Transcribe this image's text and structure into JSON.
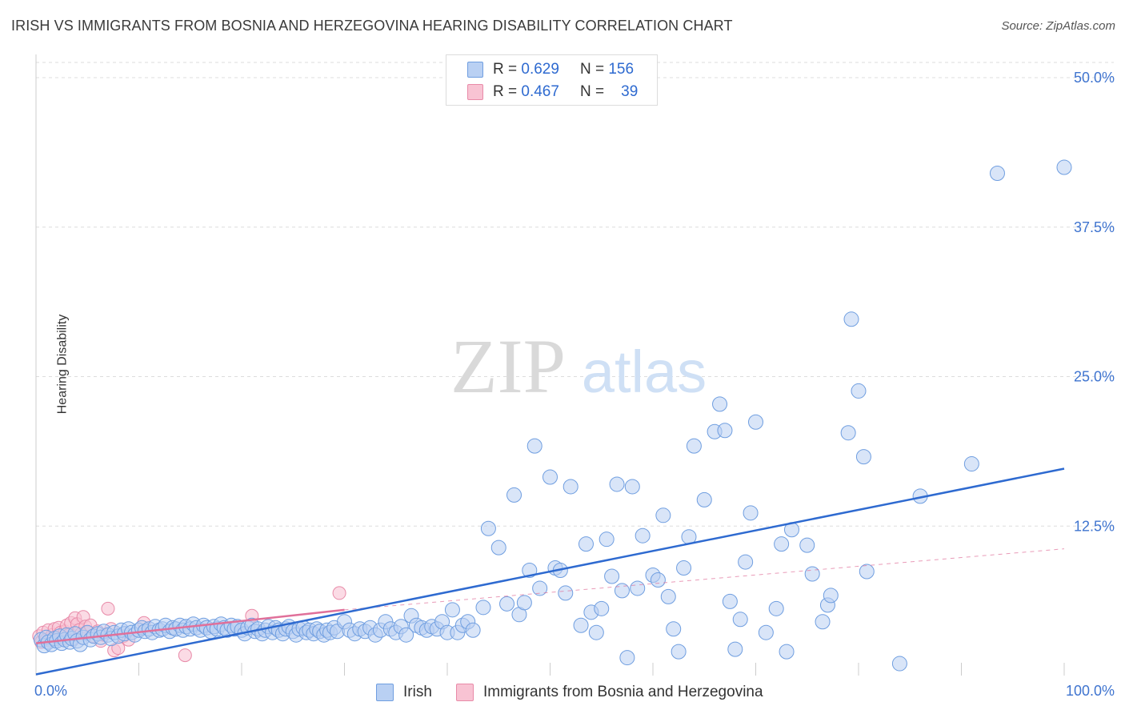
{
  "title": "IRISH VS IMMIGRANTS FROM BOSNIA AND HERZEGOVINA HEARING DISABILITY CORRELATION CHART",
  "source": "Source: ZipAtlas.com",
  "watermark": {
    "zip": "ZIP",
    "atlas": "atlas"
  },
  "legend": {
    "r_label": "R =",
    "n_label": "N =",
    "rows": [
      {
        "r": "0.629",
        "n": "156",
        "color": "#b9d0f3",
        "edge": "#6f9ee0"
      },
      {
        "r": "0.467",
        "n": "39",
        "color": "#f8c3d3",
        "edge": "#e88aa8"
      }
    ]
  },
  "colors": {
    "irish_fill": "#b9d0f3",
    "irish_edge": "#6f9ee0",
    "irish_line": "#2e6ad0",
    "bosnia_fill": "#f8c3d3",
    "bosnia_edge": "#e88aa8",
    "bosnia_line": "#e0709a",
    "tick_label": "#3f74cf",
    "grid": "#dddddd"
  },
  "chart_data": {
    "type": "scatter",
    "title": "IRISH VS IMMIGRANTS FROM BOSNIA AND HERZEGOVINA HEARING DISABILITY CORRELATION CHART",
    "xlabel": "",
    "ylabel": "Hearing Disability",
    "xlim": [
      0,
      100
    ],
    "ylim": [
      0,
      52
    ],
    "x_tick_labels": [
      "0.0%",
      "100.0%"
    ],
    "y_ticks": [
      12.5,
      25.0,
      37.5,
      50.0
    ],
    "y_tick_labels": [
      "12.5%",
      "25.0%",
      "37.5%",
      "50.0%"
    ],
    "grid": "horizontal dashed",
    "legend_position": "top-center and bottom",
    "series": [
      {
        "name": "Irish",
        "trend": {
          "x": [
            0,
            100
          ],
          "y": [
            0.1,
            17.3
          ],
          "style": "solid"
        },
        "points": [
          [
            0.5,
            3.0
          ],
          [
            0.8,
            2.5
          ],
          [
            1.0,
            3.2
          ],
          [
            1.2,
            2.8
          ],
          [
            1.5,
            2.6
          ],
          [
            1.8,
            3.1
          ],
          [
            2.0,
            2.9
          ],
          [
            2.3,
            3.3
          ],
          [
            2.5,
            2.7
          ],
          [
            2.8,
            3.0
          ],
          [
            3.0,
            3.4
          ],
          [
            3.3,
            2.8
          ],
          [
            3.5,
            3.1
          ],
          [
            3.8,
            3.5
          ],
          [
            4.0,
            2.9
          ],
          [
            4.3,
            2.6
          ],
          [
            4.6,
            3.2
          ],
          [
            5.0,
            3.6
          ],
          [
            5.3,
            3.0
          ],
          [
            5.6,
            3.3
          ],
          [
            6.0,
            3.5
          ],
          [
            6.3,
            3.2
          ],
          [
            6.6,
            3.7
          ],
          [
            7.0,
            3.4
          ],
          [
            7.3,
            3.1
          ],
          [
            7.6,
            3.6
          ],
          [
            8.0,
            3.3
          ],
          [
            8.3,
            3.8
          ],
          [
            8.6,
            3.5
          ],
          [
            9.0,
            3.9
          ],
          [
            9.3,
            3.6
          ],
          [
            9.6,
            3.4
          ],
          [
            10.0,
            3.8
          ],
          [
            10.3,
            4.0
          ],
          [
            10.6,
            3.7
          ],
          [
            11.0,
            3.9
          ],
          [
            11.3,
            3.6
          ],
          [
            11.6,
            4.1
          ],
          [
            12.0,
            3.8
          ],
          [
            12.3,
            3.9
          ],
          [
            12.6,
            4.2
          ],
          [
            13.0,
            3.7
          ],
          [
            13.3,
            4.0
          ],
          [
            13.6,
            3.9
          ],
          [
            14.0,
            4.2
          ],
          [
            14.3,
            3.8
          ],
          [
            14.6,
            4.1
          ],
          [
            15.0,
            3.9
          ],
          [
            15.3,
            4.3
          ],
          [
            15.6,
            4.0
          ],
          [
            16.0,
            3.8
          ],
          [
            16.3,
            4.2
          ],
          [
            16.6,
            4.0
          ],
          [
            17.0,
            3.7
          ],
          [
            17.3,
            4.1
          ],
          [
            17.6,
            3.9
          ],
          [
            18.0,
            4.3
          ],
          [
            18.3,
            4.0
          ],
          [
            18.6,
            3.8
          ],
          [
            19.0,
            4.2
          ],
          [
            19.3,
            3.9
          ],
          [
            19.6,
            4.1
          ],
          [
            20.0,
            3.8
          ],
          [
            20.3,
            3.5
          ],
          [
            20.6,
            4.0
          ],
          [
            21.0,
            4.2
          ],
          [
            21.3,
            3.7
          ],
          [
            21.6,
            3.9
          ],
          [
            22.0,
            3.5
          ],
          [
            22.3,
            3.8
          ],
          [
            22.6,
            4.1
          ],
          [
            23.0,
            3.6
          ],
          [
            23.3,
            4.0
          ],
          [
            23.6,
            3.8
          ],
          [
            24.0,
            3.5
          ],
          [
            24.3,
            3.9
          ],
          [
            24.6,
            4.1
          ],
          [
            25.0,
            3.7
          ],
          [
            25.3,
            3.4
          ],
          [
            25.6,
            3.9
          ],
          [
            26.0,
            4.0
          ],
          [
            26.3,
            3.6
          ],
          [
            26.6,
            3.8
          ],
          [
            27.0,
            3.5
          ],
          [
            27.3,
            3.9
          ],
          [
            27.6,
            3.7
          ],
          [
            28.0,
            3.4
          ],
          [
            28.3,
            3.8
          ],
          [
            28.6,
            3.6
          ],
          [
            29.0,
            4.0
          ],
          [
            29.3,
            3.7
          ],
          [
            30.0,
            4.5
          ],
          [
            30.5,
            3.8
          ],
          [
            31.0,
            3.5
          ],
          [
            31.5,
            3.9
          ],
          [
            32.0,
            3.7
          ],
          [
            32.5,
            4.0
          ],
          [
            33.0,
            3.4
          ],
          [
            33.5,
            3.8
          ],
          [
            34.0,
            4.5
          ],
          [
            34.5,
            3.9
          ],
          [
            35.0,
            3.6
          ],
          [
            35.5,
            4.1
          ],
          [
            36.0,
            3.4
          ],
          [
            36.5,
            5.0
          ],
          [
            37.0,
            4.2
          ],
          [
            37.5,
            4.0
          ],
          [
            38.0,
            3.8
          ],
          [
            38.5,
            4.1
          ],
          [
            39.0,
            3.9
          ],
          [
            39.5,
            4.5
          ],
          [
            40.0,
            3.6
          ],
          [
            40.5,
            5.5
          ],
          [
            41.0,
            3.6
          ],
          [
            41.5,
            4.2
          ],
          [
            42.0,
            4.5
          ],
          [
            42.5,
            3.8
          ],
          [
            43.5,
            5.7
          ],
          [
            44.0,
            12.3
          ],
          [
            45.0,
            10.7
          ],
          [
            45.8,
            6.0
          ],
          [
            46.5,
            15.1
          ],
          [
            47.0,
            5.1
          ],
          [
            47.5,
            6.1
          ],
          [
            48.0,
            8.8
          ],
          [
            48.5,
            19.2
          ],
          [
            49.0,
            7.3
          ],
          [
            50.0,
            16.6
          ],
          [
            50.5,
            9.0
          ],
          [
            51.0,
            8.8
          ],
          [
            51.5,
            6.9
          ],
          [
            52.0,
            15.8
          ],
          [
            53.0,
            4.2
          ],
          [
            53.5,
            11.0
          ],
          [
            54.0,
            5.3
          ],
          [
            54.5,
            3.6
          ],
          [
            55.0,
            5.6
          ],
          [
            55.5,
            11.4
          ],
          [
            56.0,
            8.3
          ],
          [
            56.5,
            16.0
          ],
          [
            57.0,
            7.1
          ],
          [
            57.5,
            1.5
          ],
          [
            58.0,
            15.8
          ],
          [
            58.5,
            7.3
          ],
          [
            59.0,
            11.7
          ],
          [
            60.0,
            8.4
          ],
          [
            60.5,
            8.0
          ],
          [
            61.0,
            13.4
          ],
          [
            61.5,
            6.6
          ],
          [
            62.0,
            3.9
          ],
          [
            62.5,
            2.0
          ],
          [
            63.0,
            9.0
          ],
          [
            63.5,
            11.6
          ],
          [
            64.0,
            19.2
          ],
          [
            65.0,
            14.7
          ],
          [
            66.0,
            20.4
          ],
          [
            66.5,
            22.7
          ],
          [
            67.0,
            20.5
          ],
          [
            67.5,
            6.2
          ],
          [
            68.0,
            2.2
          ],
          [
            68.5,
            4.7
          ],
          [
            69.0,
            9.5
          ],
          [
            69.5,
            13.6
          ],
          [
            70.0,
            21.2
          ],
          [
            71.0,
            3.6
          ],
          [
            72.0,
            5.6
          ],
          [
            72.5,
            11.0
          ],
          [
            73.0,
            2.0
          ],
          [
            73.5,
            12.2
          ],
          [
            75.0,
            10.9
          ],
          [
            75.5,
            8.5
          ],
          [
            76.5,
            4.5
          ],
          [
            77.0,
            5.9
          ],
          [
            77.3,
            6.7
          ],
          [
            79.0,
            20.3
          ],
          [
            79.3,
            29.8
          ],
          [
            80.0,
            23.8
          ],
          [
            80.5,
            18.3
          ],
          [
            80.8,
            8.7
          ],
          [
            84.0,
            1.0
          ],
          [
            86.0,
            15.0
          ],
          [
            91.0,
            17.7
          ],
          [
            93.5,
            42.0
          ],
          [
            100.0,
            42.5
          ]
        ]
      },
      {
        "name": "Immigrants from Bosnia and Herzegovina",
        "trend": {
          "x": [
            0,
            30
          ],
          "y": [
            2.7,
            5.5
          ],
          "style": "solid",
          "extended_to": [
            100,
            10.6
          ],
          "extended_style": "dashed"
        },
        "points": [
          [
            0.3,
            3.3
          ],
          [
            0.5,
            2.8
          ],
          [
            0.7,
            3.6
          ],
          [
            1.0,
            3.0
          ],
          [
            1.2,
            3.8
          ],
          [
            1.4,
            2.9
          ],
          [
            1.6,
            3.4
          ],
          [
            1.8,
            3.9
          ],
          [
            2.0,
            3.2
          ],
          [
            2.2,
            4.0
          ],
          [
            2.4,
            3.6
          ],
          [
            2.6,
            3.1
          ],
          [
            2.8,
            3.7
          ],
          [
            3.0,
            4.2
          ],
          [
            3.2,
            3.4
          ],
          [
            3.4,
            4.4
          ],
          [
            3.6,
            3.0
          ],
          [
            3.8,
            4.8
          ],
          [
            4.0,
            4.3
          ],
          [
            4.2,
            3.8
          ],
          [
            4.4,
            3.5
          ],
          [
            4.6,
            4.9
          ],
          [
            4.8,
            4.1
          ],
          [
            5.0,
            3.6
          ],
          [
            5.3,
            4.2
          ],
          [
            5.6,
            3.3
          ],
          [
            6.0,
            3.7
          ],
          [
            6.3,
            2.9
          ],
          [
            6.6,
            3.4
          ],
          [
            7.0,
            5.6
          ],
          [
            7.3,
            3.9
          ],
          [
            7.6,
            2.1
          ],
          [
            8.0,
            2.3
          ],
          [
            8.5,
            3.3
          ],
          [
            9.0,
            3.0
          ],
          [
            10.5,
            4.4
          ],
          [
            14.5,
            1.7
          ],
          [
            21.0,
            5.0
          ],
          [
            29.5,
            6.9
          ]
        ]
      }
    ]
  },
  "bottom_legend": [
    {
      "label": "Irish"
    },
    {
      "label": "Immigrants from Bosnia and Herzegovina"
    }
  ]
}
